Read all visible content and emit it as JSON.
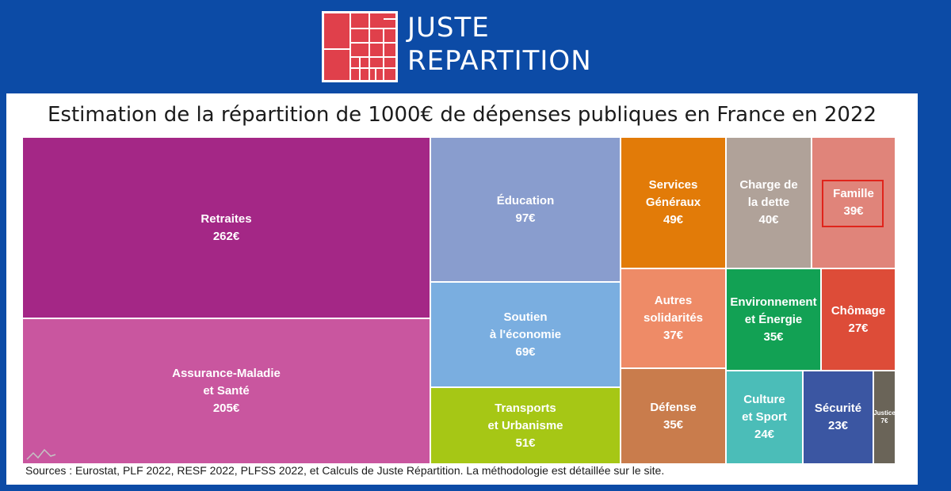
{
  "header": {
    "logo_line1": "JUSTE",
    "logo_line2": "REPARTITION"
  },
  "colors": {
    "background": "#0c4ba6",
    "logo_red": "#e0404b",
    "highlight": "#e0241b"
  },
  "chart_data": {
    "type": "treemap",
    "title": "Estimation de la répartition de 1000€ de dépenses publiques en France en 2022",
    "unit": "€",
    "total": 1000,
    "items": [
      {
        "label": "Retraites",
        "value": 262,
        "value_label": "262€",
        "color": "#a42786"
      },
      {
        "label": "Assurance-Maladie\net Santé",
        "value": 205,
        "value_label": "205€",
        "color": "#c9569f"
      },
      {
        "label": "Éducation",
        "value": 97,
        "value_label": "97€",
        "color": "#899dce"
      },
      {
        "label": "Soutien\nà l'économie",
        "value": 69,
        "value_label": "69€",
        "color": "#7aaee0"
      },
      {
        "label": "Transports\net Urbanisme",
        "value": 51,
        "value_label": "51€",
        "color": "#a6c715"
      },
      {
        "label": "Services\nGénéraux",
        "value": 49,
        "value_label": "49€",
        "color": "#e27b08"
      },
      {
        "label": "Charge de\nla dette",
        "value": 40,
        "value_label": "40€",
        "color": "#b0a299"
      },
      {
        "label": "Famille",
        "value": 39,
        "value_label": "39€",
        "color": "#e0847a",
        "highlighted": true
      },
      {
        "label": "Autres\nsolidarités",
        "value": 37,
        "value_label": "37€",
        "color": "#ee8b67"
      },
      {
        "label": "Environnement\net Énergie",
        "value": 35,
        "value_label": "35€",
        "color": "#12a154"
      },
      {
        "label": "Chômage",
        "value": 27,
        "value_label": "27€",
        "color": "#dd4c38"
      },
      {
        "label": "Défense",
        "value": 35,
        "value_label": "35€",
        "color": "#c97c4c"
      },
      {
        "label": "Culture\net Sport",
        "value": 24,
        "value_label": "24€",
        "color": "#4bbdb8"
      },
      {
        "label": "Sécurité",
        "value": 23,
        "value_label": "23€",
        "color": "#3b56a2"
      },
      {
        "label": "Justice",
        "value": 7,
        "value_label": "7€",
        "color": "#6a6458"
      }
    ]
  },
  "footer": {
    "sources": "Sources : Eurostat, PLF 2022, RESF 2022, PLFSS 2022, et Calculs de Juste Répartition. La méthodologie est détaillée sur le site."
  }
}
